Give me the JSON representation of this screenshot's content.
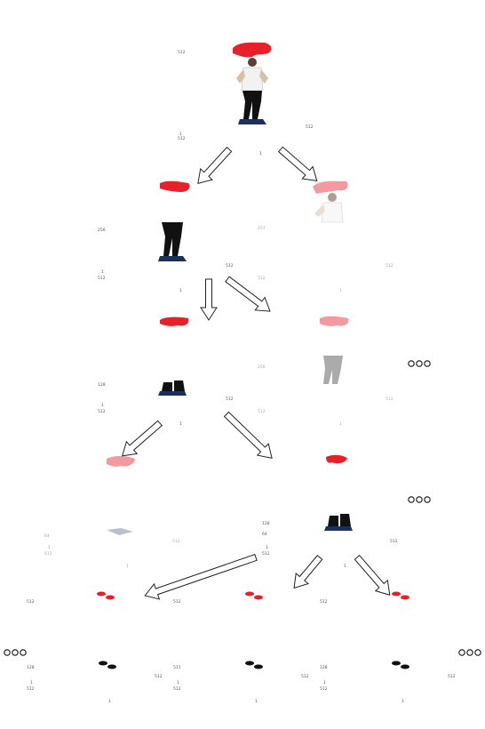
{
  "diagram": {
    "nodes": [
      {
        "id": "n0",
        "ticks": [
          "512",
          "1",
          "512",
          "1",
          "512"
        ],
        "content": "full-body",
        "faint": false
      },
      {
        "id": "n1",
        "ticks": [
          "256",
          "512",
          "1",
          "512",
          "1",
          "1",
          "512"
        ],
        "content": "legs",
        "faint": false
      },
      {
        "id": "n2",
        "ticks": [
          "257",
          "512",
          "1",
          "512"
        ],
        "content": "torso",
        "faint": true
      },
      {
        "id": "n3",
        "ticks": [
          "128",
          "512",
          "1",
          "512",
          "1",
          "1",
          "512"
        ],
        "content": "feet",
        "faint": false
      },
      {
        "id": "n4",
        "ticks": [
          "256",
          "512",
          "1",
          "512"
        ],
        "content": "lower-legs",
        "faint": true
      },
      {
        "id": "n5",
        "ticks": [
          "64",
          "512",
          "1",
          "512",
          "1",
          "1",
          "512"
        ],
        "content": "shins",
        "faint": true
      },
      {
        "id": "n6",
        "ticks": [
          "128",
          "64",
          "512",
          "1",
          "1",
          "512"
        ],
        "content": "feet",
        "faint": false
      },
      {
        "id": "n7",
        "ticks": [
          "512",
          "128",
          "512",
          "1",
          "1",
          "512"
        ],
        "content": "feet",
        "faint": false
      },
      {
        "id": "n8",
        "ticks": [
          "512",
          "511",
          "512",
          "1",
          "1",
          "512"
        ],
        "content": "feet",
        "faint": false
      },
      {
        "id": "n9",
        "ticks": [
          "512",
          "128",
          "512",
          "1",
          "1",
          "512"
        ],
        "content": "feet",
        "faint": false
      }
    ],
    "continuation_marks": [
      "row-3",
      "row-4",
      "row-5-left",
      "row-5-right"
    ],
    "colors": {
      "mask": "#e8202a",
      "mask_faint": "#f39aa0",
      "ink": "#111111"
    }
  }
}
